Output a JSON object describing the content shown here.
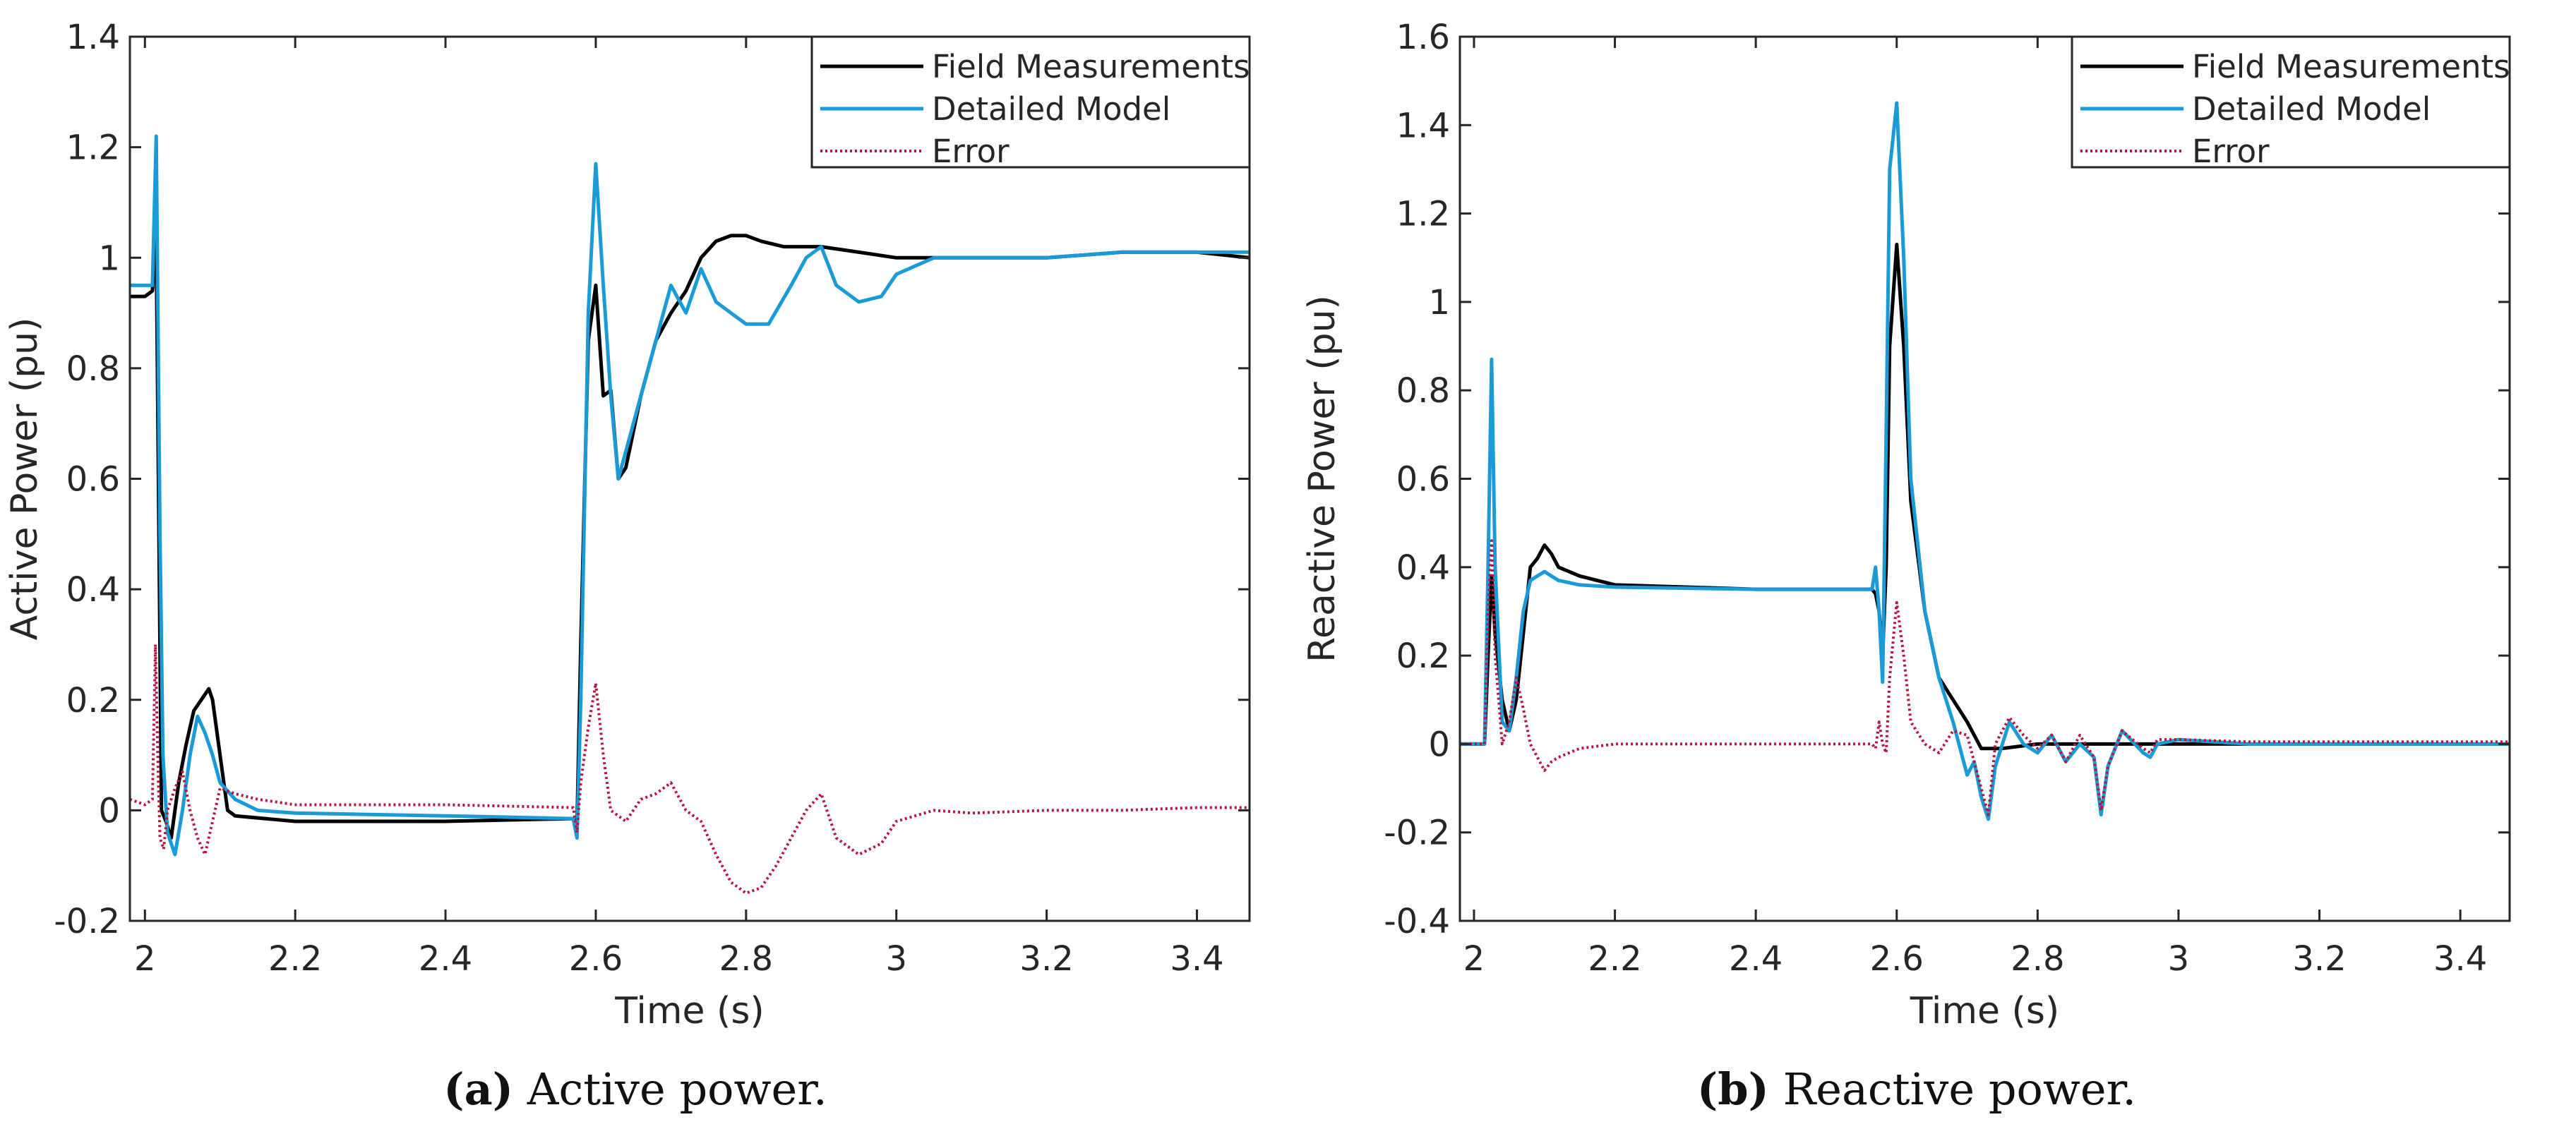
{
  "colors": {
    "field": "#000000",
    "detailed": "#1a9ad6",
    "error": "#b5163e",
    "axis": "#262626"
  },
  "chart_data": [
    {
      "type": "line",
      "caption": {
        "label": "(a)",
        "text": " Active power."
      },
      "xlabel": "Time (s)",
      "ylabel": "Active Power (pu)",
      "xlim": [
        1.98,
        3.47
      ],
      "ylim": [
        -0.2,
        1.4
      ],
      "xticks": [
        2,
        2.2,
        2.4,
        2.6,
        2.8,
        3,
        3.2,
        3.4
      ],
      "xtick_labels": [
        "2",
        "2.2",
        "2.4",
        "2.6",
        "2.8",
        "3",
        "3.2",
        "3.4"
      ],
      "yticks": [
        -0.2,
        0,
        0.2,
        0.4,
        0.6,
        0.8,
        1,
        1.2,
        1.4
      ],
      "ytick_labels": [
        "-0.2",
        "0",
        "0.2",
        "0.4",
        "0.6",
        "0.8",
        "1",
        "1.2",
        "1.4"
      ],
      "legend": {
        "position": "top-right",
        "entries": [
          "Field Measurements",
          "Detailed Model",
          "Error"
        ]
      },
      "series": [
        {
          "name": "Field Measurements",
          "style": "solid",
          "x": [
            1.98,
            2.0,
            2.01,
            2.015,
            2.018,
            2.022,
            2.028,
            2.035,
            2.045,
            2.055,
            2.065,
            2.075,
            2.085,
            2.09,
            2.1,
            2.11,
            2.12,
            2.2,
            2.4,
            2.57,
            2.572,
            2.575,
            2.58,
            2.59,
            2.6,
            2.61,
            2.62,
            2.63,
            2.64,
            2.66,
            2.68,
            2.7,
            2.72,
            2.74,
            2.76,
            2.78,
            2.8,
            2.82,
            2.85,
            2.88,
            2.9,
            2.95,
            3.0,
            3.05,
            3.1,
            3.2,
            3.3,
            3.4,
            3.47
          ],
          "y": [
            0.93,
            0.93,
            0.94,
            1.03,
            0.6,
            0.0,
            -0.02,
            -0.05,
            0.05,
            0.12,
            0.18,
            0.2,
            0.22,
            0.2,
            0.1,
            0.0,
            -0.01,
            -0.02,
            -0.02,
            -0.015,
            -0.02,
            -0.03,
            0.3,
            0.85,
            0.95,
            0.75,
            0.76,
            0.6,
            0.62,
            0.75,
            0.85,
            0.9,
            0.94,
            1.0,
            1.03,
            1.04,
            1.04,
            1.03,
            1.02,
            1.02,
            1.02,
            1.01,
            1.0,
            1.0,
            1.0,
            1.0,
            1.01,
            1.01,
            1.0
          ]
        },
        {
          "name": "Detailed Model",
          "style": "solid",
          "x": [
            1.98,
            2.0,
            2.01,
            2.015,
            2.02,
            2.024,
            2.03,
            2.035,
            2.04,
            2.05,
            2.06,
            2.07,
            2.08,
            2.09,
            2.1,
            2.12,
            2.15,
            2.2,
            2.4,
            2.57,
            2.575,
            2.58,
            2.59,
            2.6,
            2.61,
            2.62,
            2.63,
            2.65,
            2.68,
            2.7,
            2.72,
            2.74,
            2.76,
            2.78,
            2.8,
            2.83,
            2.86,
            2.88,
            2.9,
            2.92,
            2.95,
            2.98,
            3.0,
            3.05,
            3.1,
            3.2,
            3.3,
            3.4,
            3.47
          ],
          "y": [
            0.95,
            0.95,
            0.95,
            1.22,
            0.5,
            0.1,
            -0.04,
            -0.06,
            -0.08,
            0.0,
            0.1,
            0.17,
            0.14,
            0.1,
            0.05,
            0.02,
            0.0,
            -0.005,
            -0.01,
            -0.015,
            -0.05,
            0.2,
            0.9,
            1.17,
            0.95,
            0.75,
            0.6,
            0.7,
            0.85,
            0.95,
            0.9,
            0.98,
            0.92,
            0.9,
            0.88,
            0.88,
            0.95,
            1.0,
            1.02,
            0.95,
            0.92,
            0.93,
            0.97,
            1.0,
            1.0,
            1.0,
            1.01,
            1.01,
            1.01
          ]
        },
        {
          "name": "Error",
          "style": "dotted",
          "x": [
            1.98,
            2.0,
            2.01,
            2.014,
            2.017,
            2.02,
            2.025,
            2.03,
            2.04,
            2.05,
            2.06,
            2.07,
            2.08,
            2.09,
            2.1,
            2.12,
            2.15,
            2.2,
            2.4,
            2.57,
            2.575,
            2.58,
            2.59,
            2.6,
            2.61,
            2.62,
            2.64,
            2.66,
            2.68,
            2.7,
            2.72,
            2.74,
            2.76,
            2.78,
            2.8,
            2.82,
            2.84,
            2.86,
            2.88,
            2.9,
            2.92,
            2.95,
            2.98,
            3.0,
            3.05,
            3.1,
            3.2,
            3.3,
            3.4,
            3.47
          ],
          "y": [
            0.02,
            0.01,
            0.02,
            0.3,
            0.1,
            -0.05,
            -0.07,
            0.0,
            0.04,
            0.07,
            0.0,
            -0.05,
            -0.08,
            -0.02,
            0.04,
            0.03,
            0.02,
            0.01,
            0.01,
            0.005,
            -0.04,
            0.05,
            0.15,
            0.23,
            0.1,
            0.0,
            -0.02,
            0.02,
            0.03,
            0.05,
            0.0,
            -0.02,
            -0.08,
            -0.13,
            -0.15,
            -0.14,
            -0.1,
            -0.05,
            0.0,
            0.03,
            -0.05,
            -0.08,
            -0.06,
            -0.02,
            0.0,
            -0.005,
            0.0,
            0.0,
            0.005,
            0.005
          ]
        }
      ]
    },
    {
      "type": "line",
      "caption": {
        "label": "(b)",
        "text": " Reactive power."
      },
      "xlabel": "Time (s)",
      "ylabel": "Reactive Power (pu)",
      "xlim": [
        1.98,
        3.47
      ],
      "ylim": [
        -0.4,
        1.6
      ],
      "xticks": [
        2,
        2.2,
        2.4,
        2.6,
        2.8,
        3,
        3.2,
        3.4
      ],
      "xtick_labels": [
        "2",
        "2.2",
        "2.4",
        "2.6",
        "2.8",
        "3",
        "3.2",
        "3.4"
      ],
      "yticks": [
        -0.4,
        -0.2,
        0,
        0.2,
        0.4,
        0.6,
        0.8,
        1,
        1.2,
        1.4,
        1.6
      ],
      "ytick_labels": [
        "-0.4",
        "-0.2",
        "0",
        "0.2",
        "0.4",
        "0.6",
        "0.8",
        "1",
        "1.2",
        "1.4",
        "1.6"
      ],
      "legend": {
        "position": "top-right",
        "entries": [
          "Field Measurements",
          "Detailed Model",
          "Error"
        ]
      },
      "series": [
        {
          "name": "Field Measurements",
          "style": "solid",
          "x": [
            1.98,
            2.0,
            2.015,
            2.02,
            2.025,
            2.03,
            2.04,
            2.05,
            2.06,
            2.07,
            2.08,
            2.09,
            2.1,
            2.11,
            2.12,
            2.15,
            2.2,
            2.3,
            2.4,
            2.565,
            2.57,
            2.575,
            2.58,
            2.585,
            2.59,
            2.6,
            2.61,
            2.62,
            2.64,
            2.66,
            2.68,
            2.7,
            2.72,
            2.75,
            2.8,
            2.85,
            2.9,
            3.0,
            3.1,
            3.2,
            3.3,
            3.4,
            3.47
          ],
          "y": [
            0.0,
            0.0,
            0.0,
            0.2,
            0.38,
            0.25,
            0.1,
            0.03,
            0.1,
            0.25,
            0.4,
            0.42,
            0.45,
            0.43,
            0.4,
            0.38,
            0.36,
            0.355,
            0.35,
            0.35,
            0.34,
            0.3,
            0.2,
            0.4,
            0.9,
            1.13,
            0.9,
            0.55,
            0.3,
            0.15,
            0.1,
            0.05,
            -0.01,
            -0.01,
            0.0,
            0.0,
            0.0,
            0.0,
            0.0,
            0.0,
            0.0,
            0.0,
            0.0
          ]
        },
        {
          "name": "Detailed Model",
          "style": "solid",
          "x": [
            1.98,
            2.0,
            2.015,
            2.02,
            2.025,
            2.03,
            2.04,
            2.05,
            2.06,
            2.07,
            2.08,
            2.09,
            2.1,
            2.12,
            2.15,
            2.2,
            2.4,
            2.565,
            2.57,
            2.575,
            2.58,
            2.585,
            2.59,
            2.6,
            2.61,
            2.62,
            2.64,
            2.66,
            2.68,
            2.7,
            2.71,
            2.72,
            2.73,
            2.74,
            2.76,
            2.78,
            2.8,
            2.82,
            2.84,
            2.86,
            2.88,
            2.89,
            2.9,
            2.92,
            2.95,
            2.96,
            2.97,
            3.0,
            3.1,
            3.2,
            3.3,
            3.4,
            3.47
          ],
          "y": [
            0.0,
            0.0,
            0.0,
            0.4,
            0.87,
            0.4,
            0.05,
            0.03,
            0.15,
            0.3,
            0.37,
            0.38,
            0.39,
            0.37,
            0.36,
            0.355,
            0.35,
            0.35,
            0.4,
            0.3,
            0.14,
            0.7,
            1.3,
            1.45,
            1.1,
            0.6,
            0.3,
            0.15,
            0.05,
            -0.07,
            -0.04,
            -0.12,
            -0.17,
            -0.05,
            0.05,
            0.0,
            -0.02,
            0.02,
            -0.04,
            0.0,
            -0.03,
            -0.16,
            -0.05,
            0.03,
            -0.02,
            -0.03,
            0.0,
            0.01,
            0.0,
            0.0,
            0.0,
            0.0,
            0.0
          ]
        },
        {
          "name": "Error",
          "style": "dotted",
          "x": [
            1.98,
            2.0,
            2.015,
            2.02,
            2.025,
            2.03,
            2.04,
            2.05,
            2.06,
            2.07,
            2.08,
            2.09,
            2.1,
            2.11,
            2.12,
            2.15,
            2.2,
            2.4,
            2.565,
            2.57,
            2.575,
            2.58,
            2.585,
            2.59,
            2.6,
            2.61,
            2.62,
            2.64,
            2.66,
            2.68,
            2.7,
            2.71,
            2.72,
            2.73,
            2.74,
            2.76,
            2.78,
            2.8,
            2.82,
            2.84,
            2.86,
            2.88,
            2.89,
            2.9,
            2.92,
            2.95,
            2.96,
            2.97,
            3.0,
            3.1,
            3.2,
            3.3,
            3.4,
            3.47
          ],
          "y": [
            0.0,
            0.0,
            0.0,
            0.3,
            0.46,
            0.2,
            0.0,
            0.05,
            0.15,
            0.08,
            0.0,
            -0.03,
            -0.06,
            -0.04,
            -0.03,
            -0.01,
            0.0,
            0.0,
            0.0,
            -0.01,
            0.05,
            0.0,
            -0.02,
            0.15,
            0.32,
            0.2,
            0.05,
            0.0,
            -0.02,
            0.03,
            0.02,
            -0.04,
            -0.1,
            -0.16,
            0.0,
            0.06,
            0.02,
            -0.01,
            0.02,
            -0.04,
            0.02,
            -0.03,
            -0.15,
            -0.05,
            0.03,
            -0.01,
            -0.02,
            0.01,
            0.01,
            0.005,
            0.005,
            0.005,
            0.005,
            0.005
          ]
        }
      ]
    }
  ]
}
